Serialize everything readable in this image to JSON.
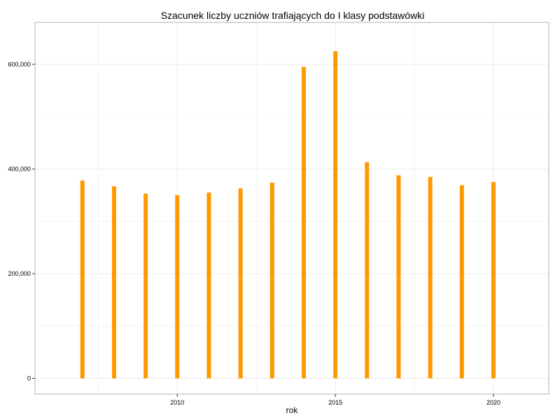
{
  "chart_data": {
    "type": "bar",
    "title": "Szacunek liczby uczniów trafiających do I klasy podstawówki",
    "xlabel": "rok",
    "ylabel": "",
    "x": [
      2007,
      2008,
      2009,
      2010,
      2011,
      2012,
      2013,
      2014,
      2015,
      2016,
      2017,
      2018,
      2019,
      2020
    ],
    "values": [
      378000,
      367000,
      353000,
      350000,
      355000,
      363000,
      374000,
      595000,
      625000,
      413000,
      388000,
      385000,
      369000,
      375000
    ],
    "xlim": [
      2005.5,
      2021.75
    ],
    "ylim": [
      -30000,
      680000
    ],
    "x_ticks": [
      2010,
      2015,
      2020
    ],
    "x_tick_labels": [
      "2010",
      "2015",
      "2020"
    ],
    "y_ticks": [
      0,
      200000,
      400000,
      600000
    ],
    "y_tick_labels": [
      "0",
      "200,000",
      "400,000",
      "600,000"
    ],
    "grid": true,
    "legend": "none",
    "colors": {
      "bar": "#FF9900",
      "grid": "#EBEBEB",
      "panel_border": "#B3B3B3"
    }
  }
}
